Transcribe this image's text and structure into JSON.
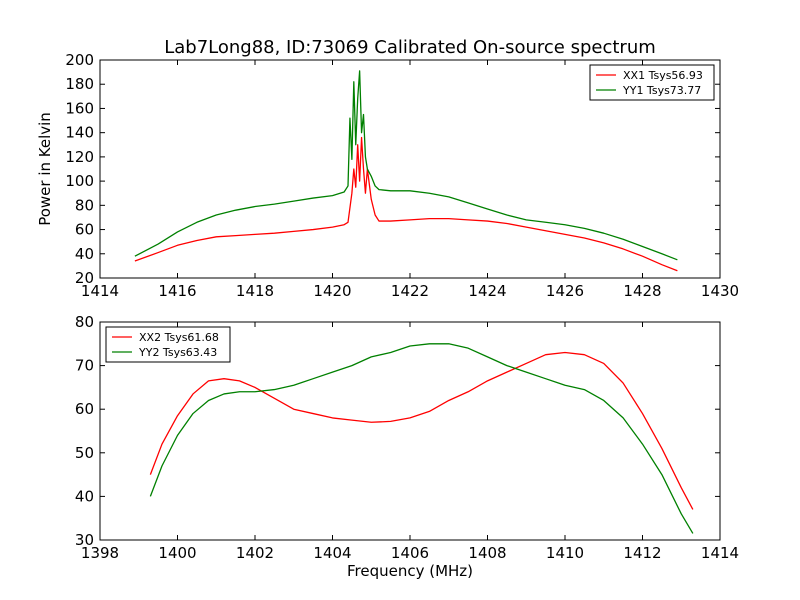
{
  "figure_title": "Lab7Long88, ID:73069 Calibrated On-source spectrum",
  "shared_xlabel": "Frequency (MHz)",
  "colors": {
    "red": "#ff0000",
    "green": "#008000"
  },
  "chart_data": [
    {
      "type": "line",
      "title": "Lab7Long88, ID:73069 Calibrated On-source spectrum",
      "xlabel": "",
      "ylabel": "Power in Kelvin",
      "xlim": [
        1414,
        1430
      ],
      "ylim": [
        20,
        200
      ],
      "xticks": [
        "1414",
        "1416",
        "1418",
        "1420",
        "1422",
        "1424",
        "1426",
        "1428",
        "1430"
      ],
      "yticks": [
        "20",
        "40",
        "60",
        "80",
        "100",
        "120",
        "140",
        "160",
        "180",
        "200"
      ],
      "legend_position": "top-right",
      "series": [
        {
          "name": "XX1 Tsys56.93",
          "color": "#ff0000",
          "x": [
            1414.9,
            1415.5,
            1416.0,
            1416.5,
            1417.0,
            1417.5,
            1418.0,
            1418.5,
            1419.0,
            1419.5,
            1420.0,
            1420.3,
            1420.4,
            1420.5,
            1420.55,
            1420.6,
            1420.65,
            1420.7,
            1420.75,
            1420.8,
            1420.85,
            1420.9,
            1421.0,
            1421.1,
            1421.2,
            1421.5,
            1422.0,
            1422.5,
            1423.0,
            1423.5,
            1424.0,
            1424.5,
            1425.0,
            1425.5,
            1426.0,
            1426.5,
            1427.0,
            1427.5,
            1428.0,
            1428.5,
            1428.9
          ],
          "values": [
            34,
            41,
            47,
            51,
            54,
            55,
            56,
            57,
            58.5,
            60,
            62,
            64,
            66,
            90,
            110,
            95,
            130,
            100,
            136,
            110,
            90,
            110,
            85,
            72,
            67,
            67,
            68,
            69,
            69,
            68,
            67,
            65,
            62,
            59,
            56,
            53,
            49,
            44,
            38,
            31,
            26
          ]
        },
        {
          "name": "YY1 Tsys73.77",
          "color": "#008000",
          "x": [
            1414.9,
            1415.5,
            1416.0,
            1416.5,
            1417.0,
            1417.5,
            1418.0,
            1418.5,
            1419.0,
            1419.5,
            1420.0,
            1420.3,
            1420.4,
            1420.45,
            1420.5,
            1420.55,
            1420.6,
            1420.65,
            1420.7,
            1420.75,
            1420.8,
            1420.85,
            1420.9,
            1421.0,
            1421.1,
            1421.2,
            1421.5,
            1422.0,
            1422.5,
            1423.0,
            1423.5,
            1424.0,
            1424.5,
            1425.0,
            1425.5,
            1426.0,
            1426.5,
            1427.0,
            1427.5,
            1428.0,
            1428.5,
            1428.9
          ],
          "values": [
            38,
            48,
            58,
            66,
            72,
            76,
            79,
            81,
            83.5,
            86,
            88,
            91,
            96,
            152,
            118,
            182,
            130,
            168,
            191,
            140,
            155,
            120,
            110,
            104,
            96,
            93,
            92,
            92,
            90,
            87,
            82,
            77,
            72,
            68,
            66,
            64,
            61,
            57,
            52,
            46,
            40,
            35
          ]
        }
      ]
    },
    {
      "type": "line",
      "title": "",
      "xlabel": "Frequency (MHz)",
      "ylabel": "",
      "xlim": [
        1398,
        1414
      ],
      "ylim": [
        30,
        80
      ],
      "xticks": [
        "1398",
        "1400",
        "1402",
        "1404",
        "1406",
        "1408",
        "1410",
        "1412",
        "1414"
      ],
      "yticks": [
        "30",
        "40",
        "50",
        "60",
        "70",
        "80"
      ],
      "legend_position": "top-left",
      "series": [
        {
          "name": "XX2 Tsys61.68",
          "color": "#ff0000",
          "x": [
            1399.3,
            1399.6,
            1400.0,
            1400.4,
            1400.8,
            1401.2,
            1401.6,
            1402.0,
            1402.5,
            1403.0,
            1403.5,
            1404.0,
            1404.5,
            1405.0,
            1405.5,
            1406.0,
            1406.5,
            1407.0,
            1407.5,
            1408.0,
            1408.5,
            1409.0,
            1409.5,
            1410.0,
            1410.5,
            1411.0,
            1411.5,
            1412.0,
            1412.5,
            1413.0,
            1413.3
          ],
          "values": [
            45,
            52,
            58.5,
            63.5,
            66.5,
            67,
            66.5,
            65,
            62.5,
            60,
            59,
            58,
            57.5,
            57,
            57.2,
            58,
            59.5,
            62,
            64,
            66.5,
            68.5,
            70.5,
            72.5,
            73,
            72.5,
            70.5,
            66,
            59,
            51,
            42,
            37
          ]
        },
        {
          "name": "YY2 Tsys63.43",
          "color": "#008000",
          "x": [
            1399.3,
            1399.6,
            1400.0,
            1400.4,
            1400.8,
            1401.2,
            1401.6,
            1402.0,
            1402.5,
            1403.0,
            1403.5,
            1404.0,
            1404.5,
            1405.0,
            1405.5,
            1406.0,
            1406.5,
            1407.0,
            1407.5,
            1408.0,
            1408.5,
            1409.0,
            1409.5,
            1410.0,
            1410.5,
            1411.0,
            1411.5,
            1412.0,
            1412.5,
            1413.0,
            1413.3
          ],
          "values": [
            40,
            47,
            54,
            59,
            62,
            63.5,
            64,
            64,
            64.5,
            65.5,
            67,
            68.5,
            70,
            72,
            73,
            74.5,
            75,
            75,
            74,
            72,
            70,
            68.5,
            67,
            65.5,
            64.5,
            62,
            58,
            52,
            45,
            36,
            31.5
          ]
        }
      ]
    }
  ]
}
